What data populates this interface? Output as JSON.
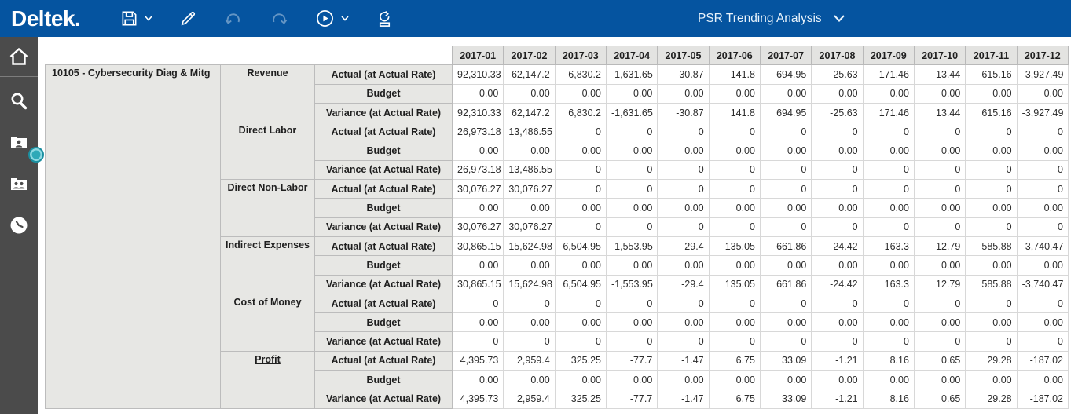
{
  "colors": {
    "topbar_blue": "#0554a0",
    "sidebar_gray": "#4b4b4b",
    "handle_teal": "#2fa9b8",
    "header_bg": "#e3e3e1",
    "label_bg": "#e7e7e4"
  },
  "topbar": {
    "logo": "Deltek.",
    "title": "PSR Trending Analysis",
    "toolbar_icons": [
      "save-icon",
      "chevron-down-icon",
      "pencil-icon",
      "undo-icon",
      "redo-icon",
      "play-circle-icon",
      "chevron-down-icon",
      "refresh-icon"
    ]
  },
  "sidebar_icons": [
    "home-icon",
    "search-icon",
    "employee-card-icon",
    "team-card-icon",
    "history-clock-icon"
  ],
  "table": {
    "project": "10105 - Cybersecurity Diag & Mitg",
    "months": [
      "2017-01",
      "2017-02",
      "2017-03",
      "2017-04",
      "2017-05",
      "2017-06",
      "2017-07",
      "2017-08",
      "2017-09",
      "2017-10",
      "2017-11",
      "2017-12"
    ],
    "row_labels": [
      "Actual (at Actual Rate)",
      "Budget",
      "Variance (at Actual Rate)"
    ],
    "groups": [
      {
        "name": "Revenue",
        "link": false,
        "actual": [
          "92,310.33",
          "62,147.2",
          "6,830.2",
          "-1,631.65",
          "-30.87",
          "141.8",
          "694.95",
          "-25.63",
          "171.46",
          "13.44",
          "615.16",
          "-3,927.49"
        ],
        "budget": [
          "0.00",
          "0.00",
          "0.00",
          "0.00",
          "0.00",
          "0.00",
          "0.00",
          "0.00",
          "0.00",
          "0.00",
          "0.00",
          "0.00"
        ],
        "variance": [
          "92,310.33",
          "62,147.2",
          "6,830.2",
          "-1,631.65",
          "-30.87",
          "141.8",
          "694.95",
          "-25.63",
          "171.46",
          "13.44",
          "615.16",
          "-3,927.49"
        ]
      },
      {
        "name": "Direct Labor",
        "link": false,
        "actual": [
          "26,973.18",
          "13,486.55",
          "0",
          "0",
          "0",
          "0",
          "0",
          "0",
          "0",
          "0",
          "0",
          "0"
        ],
        "budget": [
          "0.00",
          "0.00",
          "0.00",
          "0.00",
          "0.00",
          "0.00",
          "0.00",
          "0.00",
          "0.00",
          "0.00",
          "0.00",
          "0.00"
        ],
        "variance": [
          "26,973.18",
          "13,486.55",
          "0",
          "0",
          "0",
          "0",
          "0",
          "0",
          "0",
          "0",
          "0",
          "0"
        ]
      },
      {
        "name": "Direct Non-Labor",
        "link": false,
        "actual": [
          "30,076.27",
          "30,076.27",
          "0",
          "0",
          "0",
          "0",
          "0",
          "0",
          "0",
          "0",
          "0",
          "0"
        ],
        "budget": [
          "0.00",
          "0.00",
          "0.00",
          "0.00",
          "0.00",
          "0.00",
          "0.00",
          "0.00",
          "0.00",
          "0.00",
          "0.00",
          "0.00"
        ],
        "variance": [
          "30,076.27",
          "30,076.27",
          "0",
          "0",
          "0",
          "0",
          "0",
          "0",
          "0",
          "0",
          "0",
          "0"
        ]
      },
      {
        "name": "Indirect Expenses",
        "link": false,
        "actual": [
          "30,865.15",
          "15,624.98",
          "6,504.95",
          "-1,553.95",
          "-29.4",
          "135.05",
          "661.86",
          "-24.42",
          "163.3",
          "12.79",
          "585.88",
          "-3,740.47"
        ],
        "budget": [
          "0.00",
          "0.00",
          "0.00",
          "0.00",
          "0.00",
          "0.00",
          "0.00",
          "0.00",
          "0.00",
          "0.00",
          "0.00",
          "0.00"
        ],
        "variance": [
          "30,865.15",
          "15,624.98",
          "6,504.95",
          "-1,553.95",
          "-29.4",
          "135.05",
          "661.86",
          "-24.42",
          "163.3",
          "12.79",
          "585.88",
          "-3,740.47"
        ]
      },
      {
        "name": "Cost of Money",
        "link": false,
        "actual": [
          "0",
          "0",
          "0",
          "0",
          "0",
          "0",
          "0",
          "0",
          "0",
          "0",
          "0",
          "0"
        ],
        "budget": [
          "0.00",
          "0.00",
          "0.00",
          "0.00",
          "0.00",
          "0.00",
          "0.00",
          "0.00",
          "0.00",
          "0.00",
          "0.00",
          "0.00"
        ],
        "variance": [
          "0",
          "0",
          "0",
          "0",
          "0",
          "0",
          "0",
          "0",
          "0",
          "0",
          "0",
          "0"
        ]
      },
      {
        "name": "Profit",
        "link": true,
        "actual": [
          "4,395.73",
          "2,959.4",
          "325.25",
          "-77.7",
          "-1.47",
          "6.75",
          "33.09",
          "-1.21",
          "8.16",
          "0.65",
          "29.28",
          "-187.02"
        ],
        "budget": [
          "0.00",
          "0.00",
          "0.00",
          "0.00",
          "0.00",
          "0.00",
          "0.00",
          "0.00",
          "0.00",
          "0.00",
          "0.00",
          "0.00"
        ],
        "variance": [
          "4,395.73",
          "2,959.4",
          "325.25",
          "-77.7",
          "-1.47",
          "6.75",
          "33.09",
          "-1.21",
          "8.16",
          "0.65",
          "29.28",
          "-187.02"
        ]
      }
    ]
  }
}
